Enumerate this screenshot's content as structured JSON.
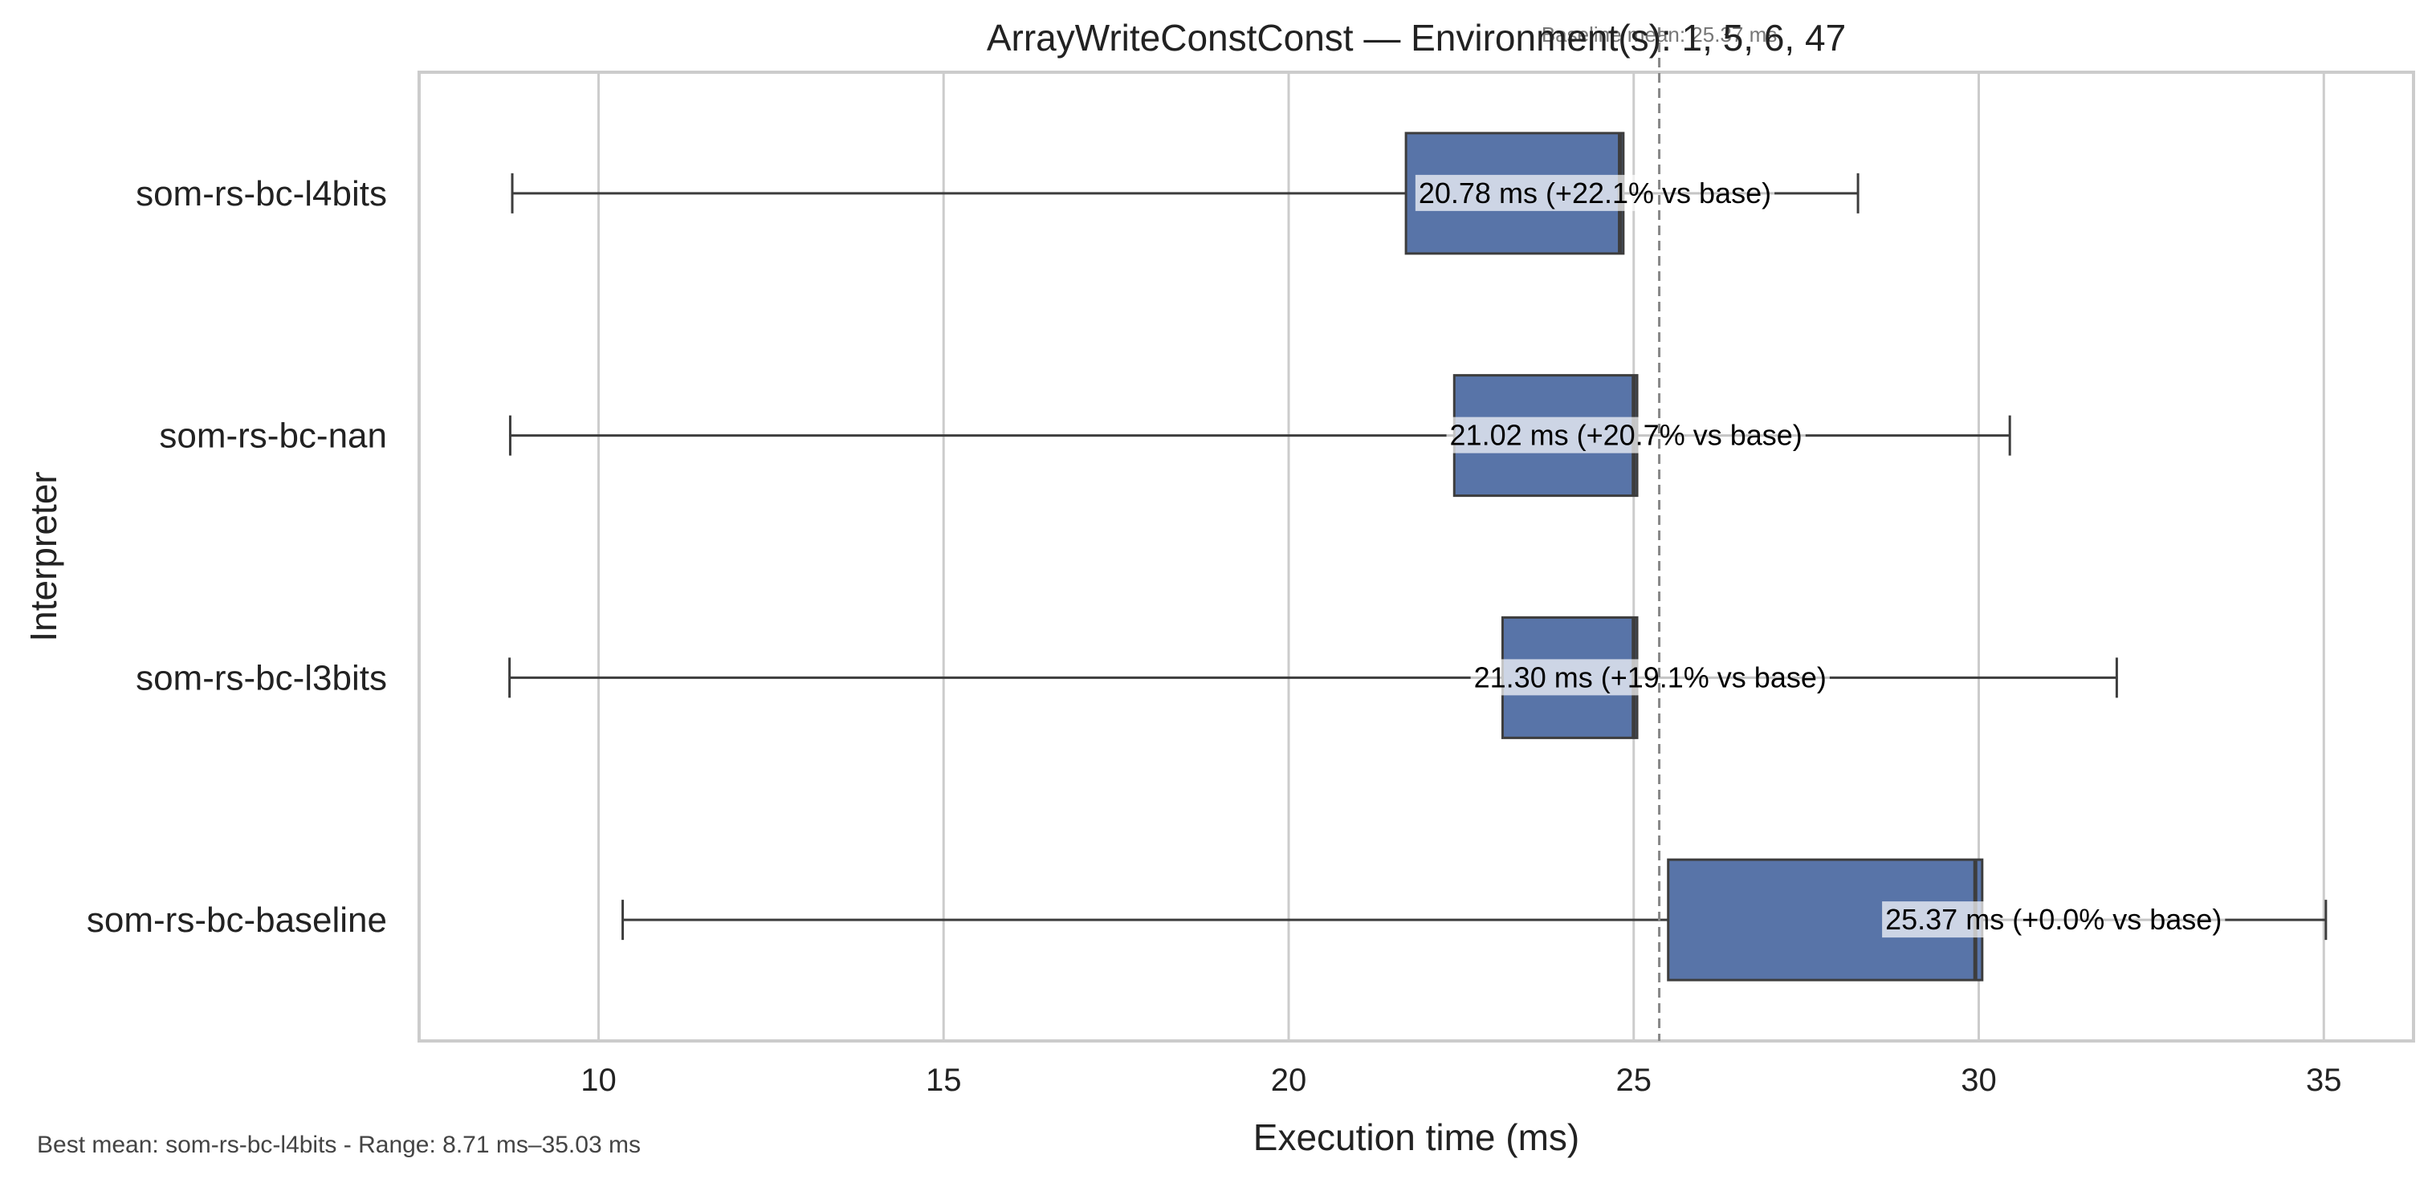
{
  "chart_data": {
    "type": "box",
    "orientation": "horizontal",
    "title": "ArrayWriteConstConst — Environment(s): 1, 5, 6, 47",
    "xlabel": "Execution time (ms)",
    "ylabel": "Interpreter",
    "xlim": [
      7.4,
      36.3
    ],
    "xticks": [
      10,
      15,
      20,
      25,
      30,
      35
    ],
    "grid": "vertical",
    "box_color": "#5874A8",
    "baseline": {
      "value": 25.37,
      "label": "Baseline mean: 25.37 ms"
    },
    "series": [
      {
        "name": "som-rs-bc-l4bits",
        "whisker_low": 8.75,
        "q1": 21.7,
        "median": 24.8,
        "q3": 24.85,
        "whisker_high": 28.25,
        "mean_label": "20.78 ms  (+22.1% vs base)"
      },
      {
        "name": "som-rs-bc-nan",
        "whisker_low": 8.72,
        "q1": 22.4,
        "median": 25.0,
        "q3": 25.05,
        "whisker_high": 30.45,
        "mean_label": "21.02 ms  (+20.7% vs base)"
      },
      {
        "name": "som-rs-bc-l3bits",
        "whisker_low": 8.71,
        "q1": 23.1,
        "median": 25.0,
        "q3": 25.05,
        "whisker_high": 32.0,
        "mean_label": "21.30 ms  (+19.1% vs base)"
      },
      {
        "name": "som-rs-bc-baseline",
        "whisker_low": 10.35,
        "q1": 25.5,
        "median": 29.95,
        "q3": 30.05,
        "whisker_high": 35.03,
        "mean_label": "25.37 ms  (+0.0% vs base)"
      }
    ],
    "footnote": "Best mean: som-rs-bc-l4bits - Range: 8.71 ms–35.03 ms"
  }
}
